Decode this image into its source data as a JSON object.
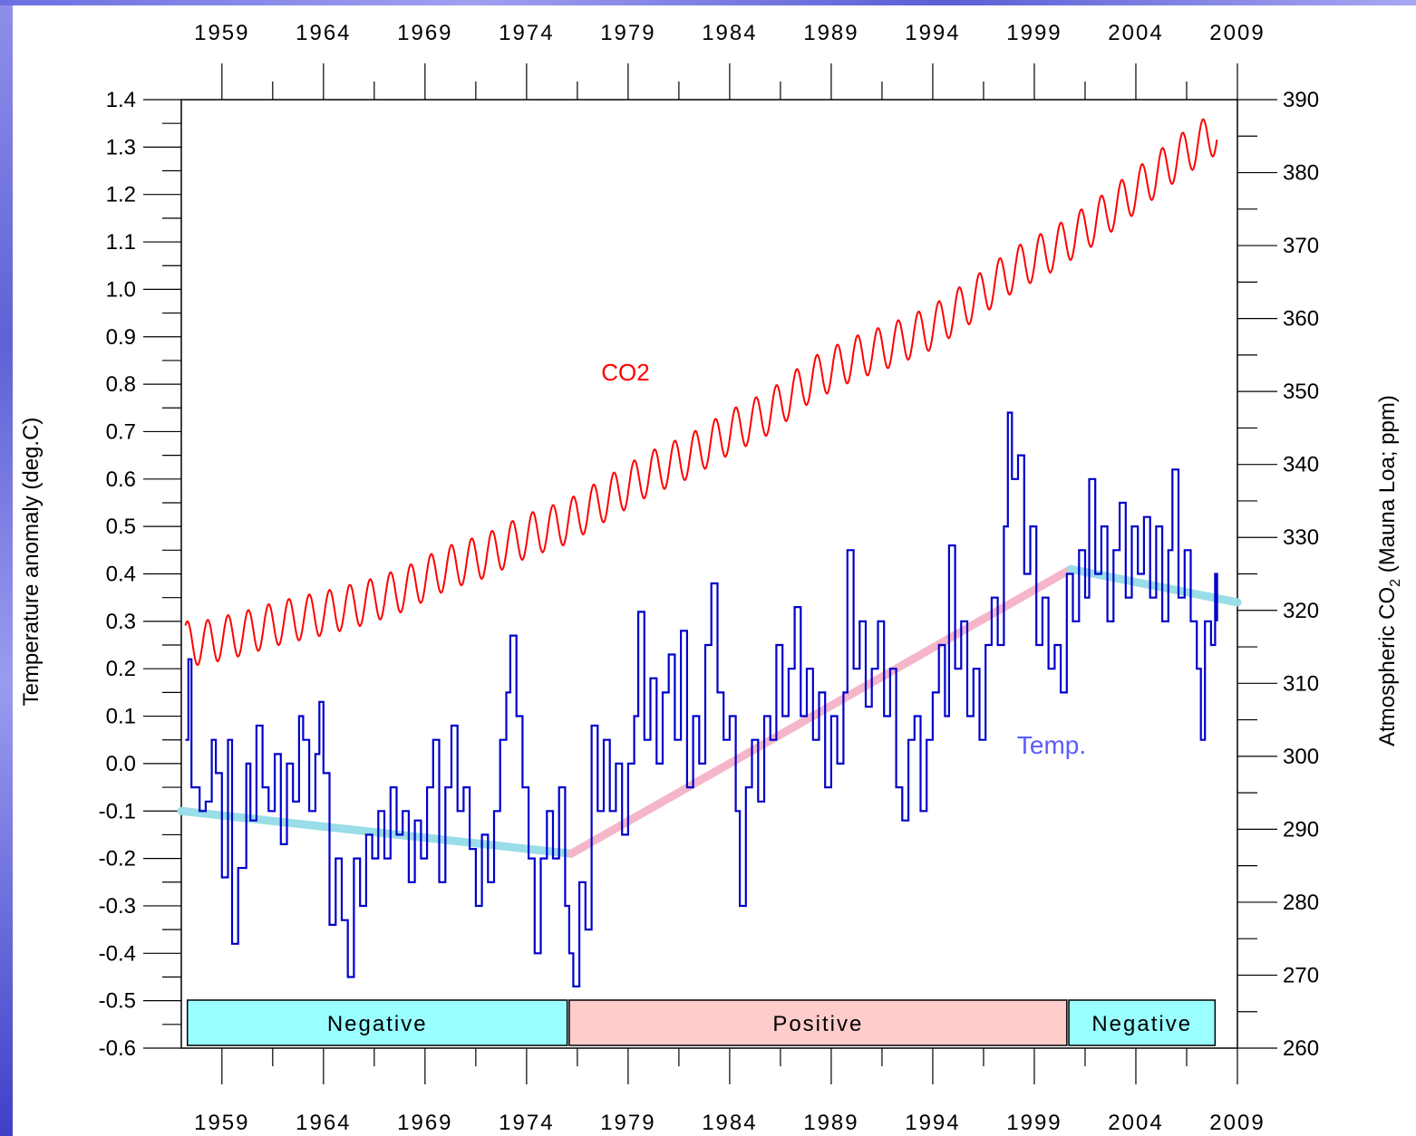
{
  "chart_data": {
    "type": "line",
    "x_axis": {
      "min": 1957.0,
      "max": 2009.0,
      "ticks": [
        1959,
        1964,
        1969,
        1974,
        1979,
        1984,
        1989,
        1994,
        1999,
        2004,
        2009
      ]
    },
    "y_left": {
      "label": "Temperature anomaly (deg.C)",
      "min": -0.6,
      "max": 1.4,
      "ticks": [
        "1.4",
        "1.3",
        "1.2",
        "1.1",
        "1.0",
        "0.9",
        "0.8",
        "0.7",
        "0.6",
        "0.5",
        "0.4",
        "0.3",
        "0.2",
        "0.1",
        "0.0",
        "-0.1",
        "-0.2",
        "-0.3",
        "-0.4",
        "-0.5",
        "-0.6"
      ]
    },
    "y_right": {
      "label_main": "Atmospheric CO",
      "label_sub": "2",
      "label_tail": " (Mauna Loa; ppm)",
      "min": 260,
      "max": 390,
      "ticks": [
        260,
        270,
        280,
        290,
        300,
        310,
        320,
        330,
        340,
        350,
        360,
        370,
        380,
        390
      ]
    },
    "annotations": {
      "co2_label": "CO2",
      "temp_label": "Temp."
    },
    "series": [
      {
        "name": "CO2",
        "axis": "right",
        "color": "#ff0000",
        "values_per": "year (annual mean, seasonal oscillation superimposed)",
        "years": [
          1958,
          1960,
          1962,
          1964,
          1966,
          1968,
          1970,
          1972,
          1974,
          1976,
          1978,
          1980,
          1982,
          1984,
          1986,
          1988,
          1990,
          1992,
          1994,
          1996,
          1998,
          2000,
          2002,
          2004,
          2006,
          2008
        ],
        "ppm": [
          315.5,
          316.8,
          318.4,
          319.6,
          321.0,
          322.9,
          325.7,
          327.5,
          330.2,
          332.1,
          335.4,
          338.7,
          341.1,
          344.4,
          347.2,
          351.6,
          354.4,
          356.4,
          358.8,
          362.6,
          366.7,
          369.6,
          373.2,
          377.5,
          381.9,
          385.6
        ],
        "seasonal_amplitude": 3.0
      },
      {
        "name": "Temp.",
        "axis": "left",
        "color": "#0000cc",
        "values_per": "month (approx.)",
        "points": [
          [
            1957.2,
            0.05
          ],
          [
            1957.35,
            0.22
          ],
          [
            1957.5,
            -0.05
          ],
          [
            1957.9,
            -0.1
          ],
          [
            1958.2,
            -0.08
          ],
          [
            1958.5,
            0.05
          ],
          [
            1958.7,
            -0.02
          ],
          [
            1959.0,
            -0.24
          ],
          [
            1959.3,
            0.05
          ],
          [
            1959.5,
            -0.38
          ],
          [
            1959.8,
            -0.22
          ],
          [
            1960.2,
            0.0
          ],
          [
            1960.4,
            -0.12
          ],
          [
            1960.7,
            0.08
          ],
          [
            1961.0,
            -0.05
          ],
          [
            1961.3,
            -0.1
          ],
          [
            1961.6,
            0.02
          ],
          [
            1961.9,
            -0.17
          ],
          [
            1962.2,
            0.0
          ],
          [
            1962.5,
            -0.08
          ],
          [
            1962.8,
            0.1
          ],
          [
            1963.0,
            0.05
          ],
          [
            1963.3,
            -0.1
          ],
          [
            1963.6,
            0.02
          ],
          [
            1963.8,
            0.13
          ],
          [
            1964.0,
            -0.02
          ],
          [
            1964.3,
            -0.34
          ],
          [
            1964.6,
            -0.2
          ],
          [
            1964.9,
            -0.33
          ],
          [
            1965.2,
            -0.45
          ],
          [
            1965.5,
            -0.2
          ],
          [
            1965.8,
            -0.3
          ],
          [
            1966.1,
            -0.15
          ],
          [
            1966.4,
            -0.2
          ],
          [
            1966.7,
            -0.1
          ],
          [
            1967.0,
            -0.2
          ],
          [
            1967.3,
            -0.05
          ],
          [
            1967.6,
            -0.15
          ],
          [
            1967.9,
            -0.1
          ],
          [
            1968.2,
            -0.25
          ],
          [
            1968.5,
            -0.12
          ],
          [
            1968.8,
            -0.2
          ],
          [
            1969.1,
            -0.05
          ],
          [
            1969.4,
            0.05
          ],
          [
            1969.7,
            -0.25
          ],
          [
            1970.0,
            -0.05
          ],
          [
            1970.3,
            0.08
          ],
          [
            1970.6,
            -0.1
          ],
          [
            1970.9,
            -0.05
          ],
          [
            1971.2,
            -0.18
          ],
          [
            1971.5,
            -0.3
          ],
          [
            1971.8,
            -0.15
          ],
          [
            1972.1,
            -0.25
          ],
          [
            1972.4,
            -0.1
          ],
          [
            1972.7,
            0.05
          ],
          [
            1973.0,
            0.15
          ],
          [
            1973.2,
            0.27
          ],
          [
            1973.5,
            0.1
          ],
          [
            1973.8,
            -0.05
          ],
          [
            1974.1,
            -0.2
          ],
          [
            1974.4,
            -0.4
          ],
          [
            1974.7,
            -0.2
          ],
          [
            1975.0,
            -0.1
          ],
          [
            1975.3,
            -0.2
          ],
          [
            1975.6,
            -0.05
          ],
          [
            1975.9,
            -0.3
          ],
          [
            1976.1,
            -0.4
          ],
          [
            1976.3,
            -0.47
          ],
          [
            1976.6,
            -0.25
          ],
          [
            1976.9,
            -0.35
          ],
          [
            1977.2,
            0.08
          ],
          [
            1977.5,
            -0.1
          ],
          [
            1977.8,
            0.05
          ],
          [
            1978.1,
            -0.1
          ],
          [
            1978.4,
            0.0
          ],
          [
            1978.7,
            -0.15
          ],
          [
            1979.0,
            0.0
          ],
          [
            1979.3,
            0.1
          ],
          [
            1979.5,
            0.32
          ],
          [
            1979.8,
            0.05
          ],
          [
            1980.1,
            0.18
          ],
          [
            1980.4,
            0.0
          ],
          [
            1980.7,
            0.15
          ],
          [
            1981.0,
            0.23
          ],
          [
            1981.3,
            0.05
          ],
          [
            1981.6,
            0.28
          ],
          [
            1981.9,
            -0.05
          ],
          [
            1982.2,
            0.1
          ],
          [
            1982.5,
            0.0
          ],
          [
            1982.8,
            0.25
          ],
          [
            1983.1,
            0.38
          ],
          [
            1983.4,
            0.15
          ],
          [
            1983.7,
            0.05
          ],
          [
            1984.0,
            0.1
          ],
          [
            1984.3,
            -0.1
          ],
          [
            1984.5,
            -0.3
          ],
          [
            1984.8,
            -0.05
          ],
          [
            1985.1,
            0.05
          ],
          [
            1985.4,
            -0.08
          ],
          [
            1985.7,
            0.1
          ],
          [
            1986.0,
            0.05
          ],
          [
            1986.3,
            0.25
          ],
          [
            1986.6,
            0.1
          ],
          [
            1986.9,
            0.2
          ],
          [
            1987.2,
            0.33
          ],
          [
            1987.5,
            0.1
          ],
          [
            1987.8,
            0.2
          ],
          [
            1988.1,
            0.05
          ],
          [
            1988.4,
            0.15
          ],
          [
            1988.7,
            -0.05
          ],
          [
            1989.0,
            0.1
          ],
          [
            1989.3,
            0.0
          ],
          [
            1989.6,
            0.15
          ],
          [
            1989.8,
            0.45
          ],
          [
            1990.1,
            0.2
          ],
          [
            1990.4,
            0.3
          ],
          [
            1990.7,
            0.12
          ],
          [
            1991.0,
            0.2
          ],
          [
            1991.3,
            0.3
          ],
          [
            1991.6,
            0.1
          ],
          [
            1991.9,
            0.2
          ],
          [
            1992.2,
            -0.05
          ],
          [
            1992.5,
            -0.12
          ],
          [
            1992.8,
            0.05
          ],
          [
            1993.1,
            0.1
          ],
          [
            1993.4,
            -0.1
          ],
          [
            1993.7,
            0.05
          ],
          [
            1994.0,
            0.15
          ],
          [
            1994.3,
            0.25
          ],
          [
            1994.6,
            0.1
          ],
          [
            1994.8,
            0.46
          ],
          [
            1995.1,
            0.2
          ],
          [
            1995.4,
            0.3
          ],
          [
            1995.7,
            0.1
          ],
          [
            1996.0,
            0.2
          ],
          [
            1996.3,
            0.05
          ],
          [
            1996.6,
            0.25
          ],
          [
            1996.9,
            0.35
          ],
          [
            1997.2,
            0.25
          ],
          [
            1997.5,
            0.5
          ],
          [
            1997.7,
            0.74
          ],
          [
            1997.9,
            0.6
          ],
          [
            1998.2,
            0.65
          ],
          [
            1998.5,
            0.4
          ],
          [
            1998.8,
            0.5
          ],
          [
            1999.1,
            0.25
          ],
          [
            1999.4,
            0.35
          ],
          [
            1999.7,
            0.2
          ],
          [
            2000.0,
            0.25
          ],
          [
            2000.3,
            0.15
          ],
          [
            2000.6,
            0.4
          ],
          [
            2000.9,
            0.3
          ],
          [
            2001.2,
            0.45
          ],
          [
            2001.5,
            0.35
          ],
          [
            2001.7,
            0.6
          ],
          [
            2002.0,
            0.4
          ],
          [
            2002.3,
            0.5
          ],
          [
            2002.6,
            0.3
          ],
          [
            2002.9,
            0.45
          ],
          [
            2003.2,
            0.55
          ],
          [
            2003.5,
            0.35
          ],
          [
            2003.8,
            0.5
          ],
          [
            2004.1,
            0.4
          ],
          [
            2004.4,
            0.52
          ],
          [
            2004.7,
            0.35
          ],
          [
            2005.0,
            0.5
          ],
          [
            2005.3,
            0.3
          ],
          [
            2005.6,
            0.45
          ],
          [
            2005.8,
            0.62
          ],
          [
            2006.1,
            0.35
          ],
          [
            2006.4,
            0.45
          ],
          [
            2006.7,
            0.3
          ],
          [
            2007.0,
            0.2
          ],
          [
            2007.2,
            0.05
          ],
          [
            2007.4,
            0.3
          ],
          [
            2007.7,
            0.25
          ],
          [
            2007.9,
            0.4
          ],
          [
            2008.0,
            0.3
          ]
        ]
      }
    ],
    "trend_lines": [
      {
        "name": "trend-1957-1976",
        "color": "#99dde8",
        "from": [
          1957.0,
          -0.1
        ],
        "to": [
          1976.2,
          -0.19
        ]
      },
      {
        "name": "trend-1976-2001",
        "color": "#f4b6c8",
        "from": [
          1976.2,
          -0.19
        ],
        "to": [
          2000.8,
          0.41
        ]
      },
      {
        "name": "trend-2001-2009",
        "color": "#99dde8",
        "from": [
          2000.8,
          0.41
        ],
        "to": [
          2009.0,
          0.34
        ]
      }
    ],
    "phase_bands": [
      {
        "label": "Negative",
        "start": 1957.3,
        "end": 1976.0,
        "color": "#99ffff"
      },
      {
        "label": "Positive",
        "start": 1976.1,
        "end": 2000.6,
        "color": "#ffcccc"
      },
      {
        "label": "Negative",
        "start": 2000.7,
        "end": 2007.9,
        "color": "#99ffff"
      }
    ]
  }
}
